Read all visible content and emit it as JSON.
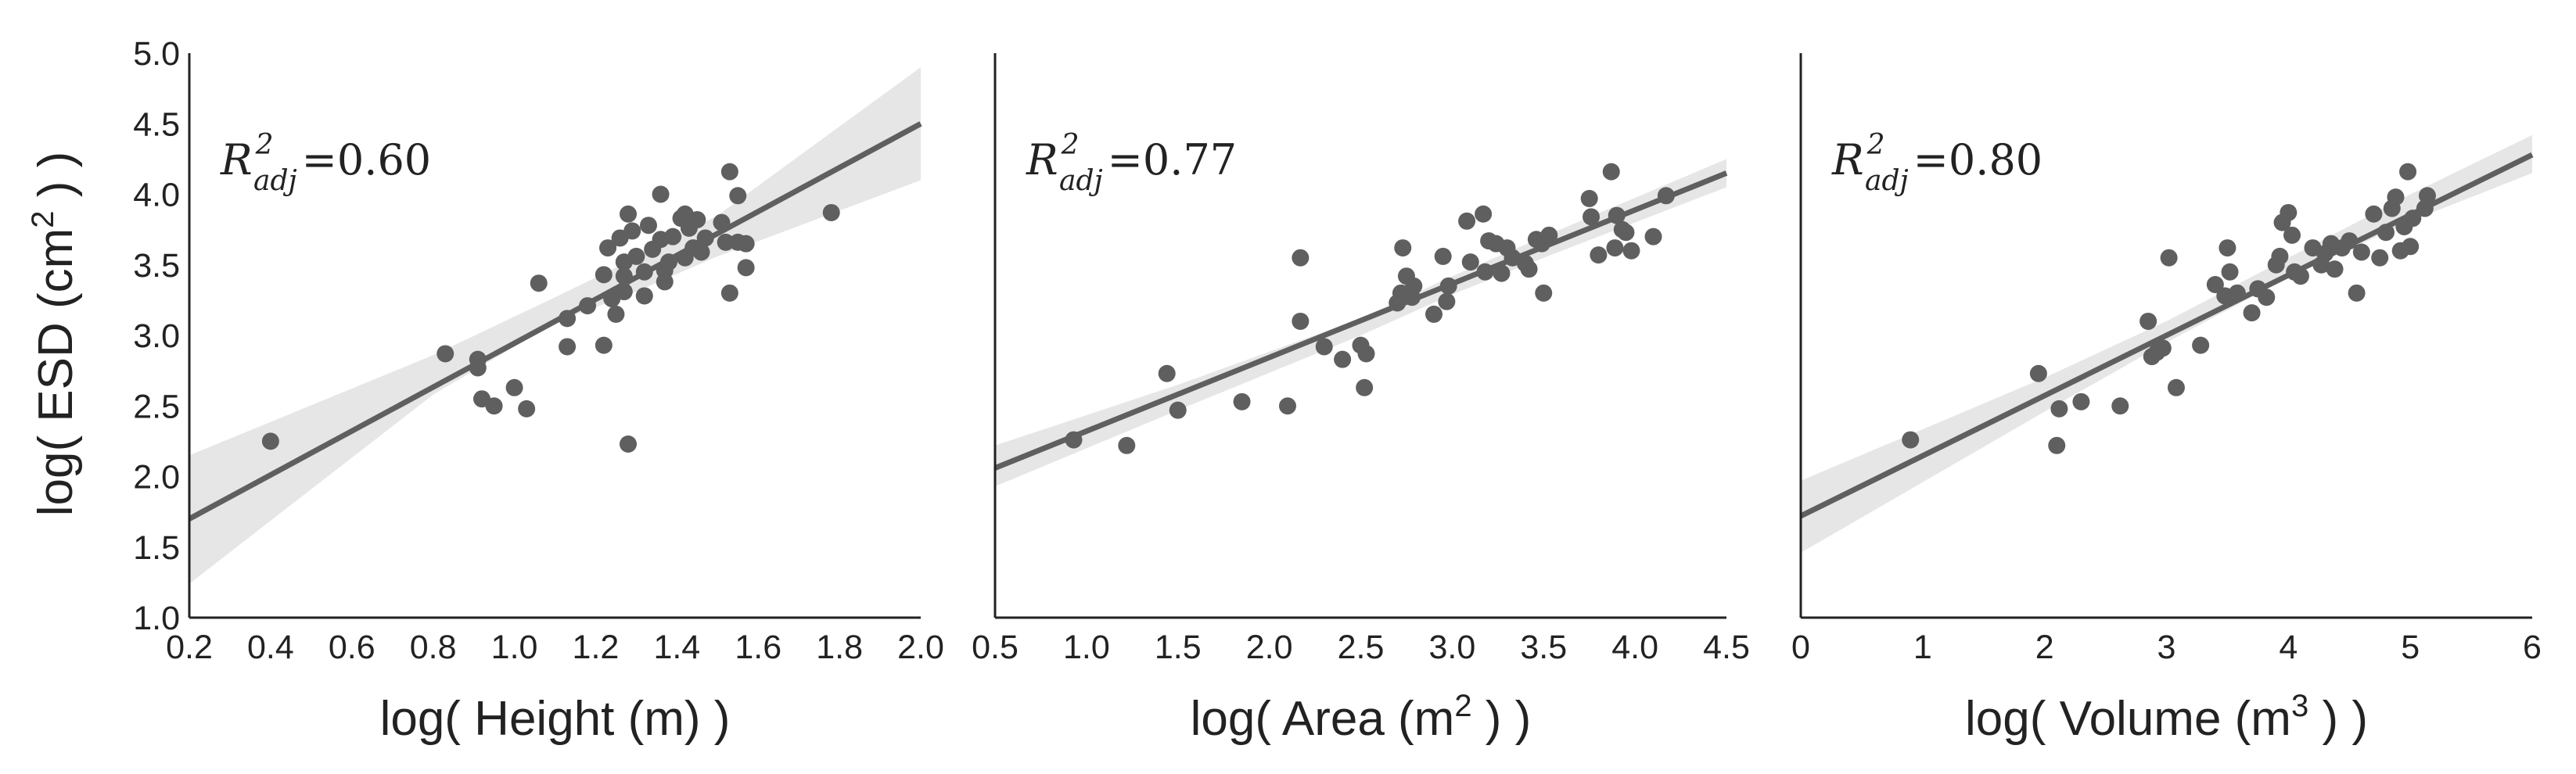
{
  "figure": {
    "ylabel_parts": [
      "log( ESD (cm",
      "2",
      " ) )"
    ],
    "point_color": "#5f5f5f",
    "band_color": "#e6e6e6"
  },
  "chart_data": [
    {
      "type": "scatter",
      "title": "",
      "xlabel_parts": [
        "log( Height (m) )"
      ],
      "ylabel": "log( ESD (cm2 ) )",
      "xlim": [
        0.2,
        2.0
      ],
      "ylim": [
        1.0,
        5.0
      ],
      "xticks": [
        0.2,
        0.4,
        0.6,
        0.8,
        1.0,
        1.2,
        1.4,
        1.6,
        1.8,
        2.0
      ],
      "xtick_labels": [
        "0.2",
        "0.4",
        "0.6",
        "0.8",
        "1.0",
        "1.2",
        "1.4",
        "1.6",
        "1.8",
        "2.0"
      ],
      "yticks": [
        1.0,
        1.5,
        2.0,
        2.5,
        3.0,
        3.5,
        4.0,
        4.5,
        5.0
      ],
      "ytick_labels": [
        "1.0",
        "1.5",
        "2.0",
        "2.5",
        "3.0",
        "3.5",
        "4.0",
        "4.5",
        "5.0"
      ],
      "annotation": {
        "symbol": "R",
        "sup": "2",
        "sub": "adj",
        "value": "=0.60"
      },
      "fit": {
        "x": [
          0.2,
          2.0
        ],
        "y": [
          1.7,
          4.5
        ]
      },
      "band": {
        "x": [
          0.2,
          0.8,
          1.1,
          1.3,
          1.5,
          2.0
        ],
        "lower": [
          1.24,
          2.58,
          3.09,
          3.31,
          3.56,
          4.1
        ],
        "upper": [
          2.15,
          2.86,
          3.27,
          3.55,
          3.85,
          4.9
        ]
      },
      "points": [
        [
          0.4,
          2.25
        ],
        [
          0.83,
          2.87
        ],
        [
          0.91,
          2.83
        ],
        [
          0.91,
          2.77
        ],
        [
          0.92,
          2.55
        ],
        [
          0.95,
          2.5
        ],
        [
          1.0,
          2.63
        ],
        [
          1.03,
          2.48
        ],
        [
          1.06,
          3.37
        ],
        [
          1.13,
          2.92
        ],
        [
          1.13,
          3.12
        ],
        [
          1.18,
          3.21
        ],
        [
          1.22,
          2.93
        ],
        [
          1.22,
          3.43
        ],
        [
          1.23,
          3.62
        ],
        [
          1.24,
          3.26
        ],
        [
          1.25,
          3.15
        ],
        [
          1.26,
          3.69
        ],
        [
          1.27,
          3.52
        ],
        [
          1.27,
          3.42
        ],
        [
          1.27,
          3.31
        ],
        [
          1.28,
          3.86
        ],
        [
          1.28,
          2.23
        ],
        [
          1.29,
          3.74
        ],
        [
          1.3,
          3.56
        ],
        [
          1.32,
          3.45
        ],
        [
          1.32,
          3.28
        ],
        [
          1.33,
          3.78
        ],
        [
          1.34,
          3.61
        ],
        [
          1.36,
          3.68
        ],
        [
          1.36,
          4.0
        ],
        [
          1.37,
          3.46
        ],
        [
          1.37,
          3.38
        ],
        [
          1.38,
          3.52
        ],
        [
          1.39,
          3.7
        ],
        [
          1.41,
          3.83
        ],
        [
          1.42,
          3.86
        ],
        [
          1.42,
          3.55
        ],
        [
          1.43,
          3.76
        ],
        [
          1.44,
          3.62
        ],
        [
          1.45,
          3.82
        ],
        [
          1.46,
          3.59
        ],
        [
          1.47,
          3.69
        ],
        [
          1.51,
          3.8
        ],
        [
          1.52,
          3.66
        ],
        [
          1.53,
          4.16
        ],
        [
          1.53,
          3.3
        ],
        [
          1.55,
          3.66
        ],
        [
          1.55,
          3.99
        ],
        [
          1.57,
          3.48
        ],
        [
          1.57,
          3.65
        ],
        [
          1.78,
          3.87
        ]
      ]
    },
    {
      "type": "scatter",
      "title": "",
      "xlabel_parts": [
        "log( Area (m",
        "2",
        " ) )"
      ],
      "ylabel": "",
      "xlim": [
        0.5,
        4.5
      ],
      "ylim": [
        1.0,
        5.0
      ],
      "xticks": [
        0.5,
        1.0,
        1.5,
        2.0,
        2.5,
        3.0,
        3.5,
        4.0,
        4.5
      ],
      "xtick_labels": [
        "0.5",
        "1.0",
        "1.5",
        "2.0",
        "2.5",
        "3.0",
        "3.5",
        "4.0",
        "4.5"
      ],
      "yticks": [],
      "ytick_labels": [],
      "annotation": {
        "symbol": "R",
        "sup": "2",
        "sub": "adj",
        "value": "=0.77"
      },
      "fit": {
        "x": [
          0.5,
          4.5
        ],
        "y": [
          2.06,
          4.15
        ]
      },
      "band": {
        "x": [
          0.5,
          1.5,
          2.5,
          3.0,
          3.5,
          4.5
        ],
        "lower": [
          1.93,
          2.47,
          3.0,
          3.29,
          3.55,
          4.05
        ],
        "upper": [
          2.22,
          2.65,
          3.12,
          3.42,
          3.7,
          4.25
        ]
      },
      "points": [
        [
          0.93,
          2.26
        ],
        [
          1.22,
          2.22
        ],
        [
          1.44,
          2.73
        ],
        [
          1.5,
          2.47
        ],
        [
          1.85,
          2.53
        ],
        [
          2.1,
          2.5
        ],
        [
          2.17,
          3.55
        ],
        [
          2.17,
          3.1
        ],
        [
          2.3,
          2.92
        ],
        [
          2.4,
          2.83
        ],
        [
          2.5,
          2.93
        ],
        [
          2.52,
          2.63
        ],
        [
          2.53,
          2.87
        ],
        [
          2.7,
          3.23
        ],
        [
          2.72,
          3.3
        ],
        [
          2.73,
          3.62
        ],
        [
          2.75,
          3.42
        ],
        [
          2.78,
          3.27
        ],
        [
          2.79,
          3.35
        ],
        [
          2.9,
          3.15
        ],
        [
          2.95,
          3.56
        ],
        [
          2.97,
          3.24
        ],
        [
          2.98,
          3.35
        ],
        [
          3.08,
          3.81
        ],
        [
          3.1,
          3.52
        ],
        [
          3.17,
          3.86
        ],
        [
          3.18,
          3.45
        ],
        [
          3.2,
          3.67
        ],
        [
          3.24,
          3.65
        ],
        [
          3.27,
          3.44
        ],
        [
          3.3,
          3.62
        ],
        [
          3.33,
          3.55
        ],
        [
          3.4,
          3.51
        ],
        [
          3.42,
          3.47
        ],
        [
          3.46,
          3.68
        ],
        [
          3.49,
          3.65
        ],
        [
          3.5,
          3.3
        ],
        [
          3.53,
          3.71
        ],
        [
          3.75,
          3.97
        ],
        [
          3.76,
          3.84
        ],
        [
          3.8,
          3.57
        ],
        [
          3.87,
          4.16
        ],
        [
          3.89,
          3.62
        ],
        [
          3.9,
          3.85
        ],
        [
          3.93,
          3.75
        ],
        [
          3.95,
          3.73
        ],
        [
          3.98,
          3.6
        ],
        [
          4.1,
          3.7
        ],
        [
          4.17,
          3.99
        ]
      ]
    },
    {
      "type": "scatter",
      "title": "",
      "xlabel_parts": [
        "log( Volume (m",
        "3",
        " ) )"
      ],
      "ylabel": "",
      "xlim": [
        0,
        6
      ],
      "ylim": [
        1.0,
        5.0
      ],
      "xticks": [
        0,
        1,
        2,
        3,
        4,
        5,
        6
      ],
      "xtick_labels": [
        "0",
        "1",
        "2",
        "3",
        "4",
        "5",
        "6"
      ],
      "yticks": [],
      "ytick_labels": [],
      "annotation": {
        "symbol": "R",
        "sup": "2",
        "sub": "adj",
        "value": "=0.80"
      },
      "fit": {
        "x": [
          0,
          6
        ],
        "y": [
          1.72,
          4.28
        ]
      },
      "band": {
        "x": [
          0,
          2,
          3,
          4,
          5,
          6
        ],
        "lower": [
          1.46,
          2.46,
          2.95,
          3.41,
          3.81,
          4.15
        ],
        "upper": [
          1.97,
          2.7,
          3.1,
          3.55,
          4.0,
          4.42
        ]
      },
      "points": [
        [
          0.9,
          2.26
        ],
        [
          1.95,
          2.73
        ],
        [
          2.1,
          2.22
        ],
        [
          2.12,
          2.48
        ],
        [
          2.3,
          2.53
        ],
        [
          2.62,
          2.5
        ],
        [
          2.85,
          3.1
        ],
        [
          2.88,
          2.85
        ],
        [
          2.92,
          2.88
        ],
        [
          2.97,
          2.91
        ],
        [
          3.02,
          3.55
        ],
        [
          3.08,
          2.63
        ],
        [
          3.28,
          2.93
        ],
        [
          3.4,
          3.36
        ],
        [
          3.48,
          3.28
        ],
        [
          3.5,
          3.62
        ],
        [
          3.52,
          3.45
        ],
        [
          3.58,
          3.3
        ],
        [
          3.7,
          3.16
        ],
        [
          3.75,
          3.33
        ],
        [
          3.82,
          3.27
        ],
        [
          3.9,
          3.5
        ],
        [
          3.93,
          3.56
        ],
        [
          3.95,
          3.8
        ],
        [
          4.0,
          3.87
        ],
        [
          4.03,
          3.71
        ],
        [
          4.05,
          3.45
        ],
        [
          4.1,
          3.42
        ],
        [
          4.2,
          3.62
        ],
        [
          4.27,
          3.5
        ],
        [
          4.3,
          3.58
        ],
        [
          4.35,
          3.65
        ],
        [
          4.38,
          3.47
        ],
        [
          4.44,
          3.62
        ],
        [
          4.5,
          3.67
        ],
        [
          4.56,
          3.3
        ],
        [
          4.6,
          3.59
        ],
        [
          4.7,
          3.86
        ],
        [
          4.75,
          3.55
        ],
        [
          4.8,
          3.73
        ],
        [
          4.85,
          3.9
        ],
        [
          4.88,
          3.98
        ],
        [
          4.92,
          3.6
        ],
        [
          4.95,
          3.77
        ],
        [
          4.98,
          4.16
        ],
        [
          5.0,
          3.63
        ],
        [
          5.02,
          3.83
        ],
        [
          5.12,
          3.9
        ],
        [
          5.14,
          3.99
        ]
      ]
    }
  ]
}
